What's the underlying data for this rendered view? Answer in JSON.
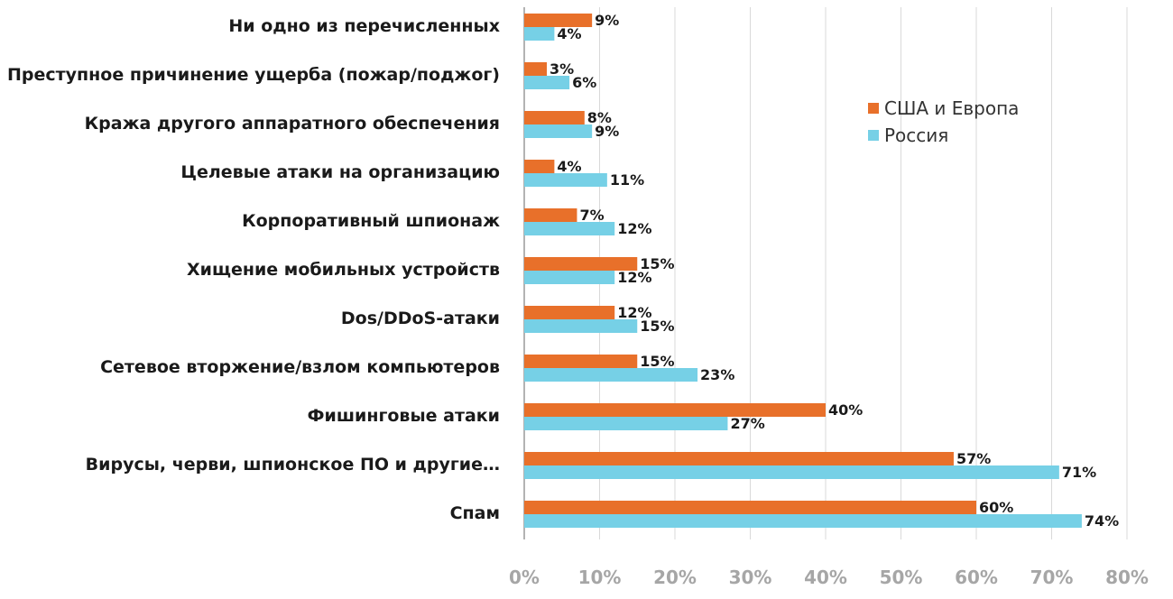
{
  "chart_data": {
    "type": "bar",
    "orientation": "horizontal",
    "title": "",
    "xlabel": "",
    "ylabel": "",
    "xlim": [
      0,
      80
    ],
    "x_ticks": [
      0,
      10,
      20,
      30,
      40,
      50,
      60,
      70,
      80
    ],
    "tick_suffix": "%",
    "grid": "vertical",
    "legend_position": "top-right",
    "categories": [
      "Ни одно из перечисленных",
      "Преступное причинение ущерба (пожар/поджог)",
      "Кража другого аппаратного обеспечения",
      "Целевые атаки на организацию",
      "Корпоративный шпионаж",
      "Хищение мобильных устройств",
      "Dos/DDoS-атаки",
      "Сетевое вторжение/взлом компьютеров",
      "Фишинговые атаки",
      "Вирусы, черви, шпионское ПО и другие…",
      "Спам"
    ],
    "series": [
      {
        "name": "США и Европа",
        "color": "#e8702a",
        "values": [
          9,
          3,
          8,
          4,
          7,
          15,
          12,
          15,
          40,
          57,
          60
        ]
      },
      {
        "name": "Россия",
        "color": "#76d0e6",
        "values": [
          4,
          6,
          9,
          11,
          12,
          12,
          15,
          23,
          27,
          71,
          74
        ]
      }
    ]
  }
}
